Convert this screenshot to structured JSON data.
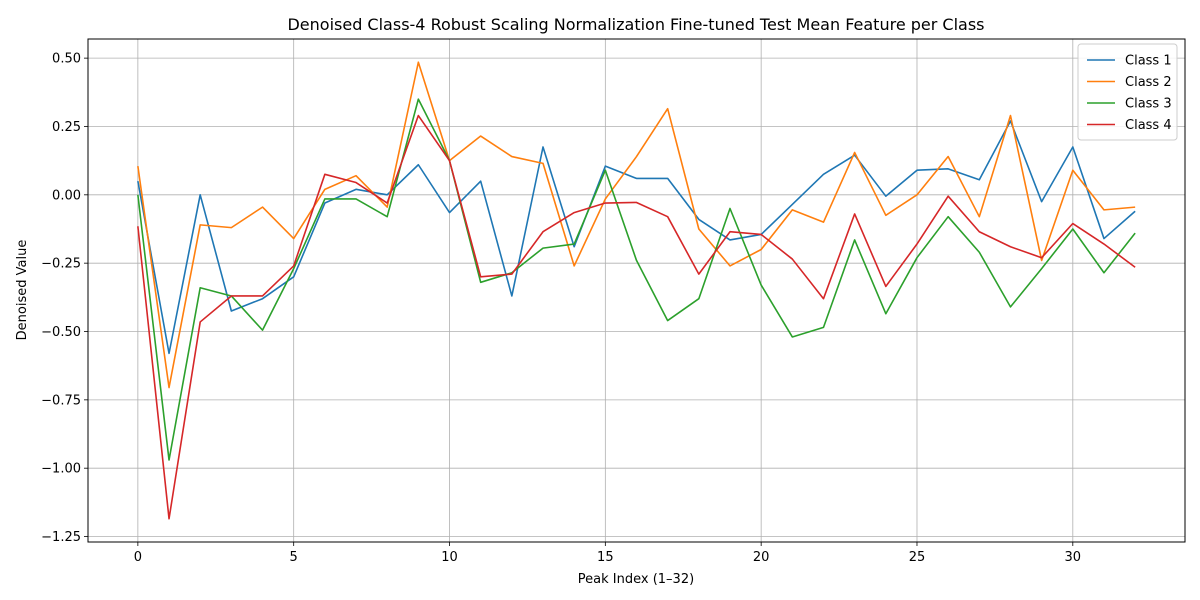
{
  "chart_data": {
    "type": "line",
    "title": "Denoised Class-4 Robust Scaling Normalization Fine-tuned Test Mean Feature per Class",
    "xlabel": "Peak Index (1–32)",
    "ylabel": "Denoised Value",
    "xlim": [
      -1.6,
      33.6
    ],
    "ylim": [
      -1.27,
      0.57
    ],
    "xticks": [
      0,
      5,
      10,
      15,
      20,
      25,
      30
    ],
    "xtick_labels": [
      "0",
      "5",
      "10",
      "15",
      "20",
      "25",
      "30"
    ],
    "yticks": [
      -1.25,
      -1.0,
      -0.75,
      -0.5,
      -0.25,
      0.0,
      0.25,
      0.5
    ],
    "ytick_labels": [
      "−1.25",
      "−1.00",
      "−0.75",
      "−0.50",
      "−0.25",
      "0.00",
      "0.25",
      "0.50"
    ],
    "grid": true,
    "legend_position": "top-right",
    "x": [
      0,
      1,
      2,
      3,
      4,
      5,
      6,
      7,
      8,
      9,
      10,
      11,
      12,
      13,
      14,
      15,
      16,
      17,
      18,
      19,
      20,
      21,
      22,
      23,
      24,
      25,
      26,
      27,
      28,
      29,
      30,
      31,
      32
    ],
    "series": [
      {
        "name": "Class 1",
        "color": "#1f77b4",
        "values": [
          0.05,
          -0.58,
          0.0,
          -0.425,
          -0.38,
          -0.3,
          -0.03,
          0.02,
          0.0,
          0.11,
          -0.065,
          0.05,
          -0.37,
          0.175,
          -0.19,
          0.105,
          0.06,
          0.06,
          -0.09,
          -0.165,
          -0.145,
          -0.035,
          0.075,
          0.145,
          -0.005,
          0.09,
          0.095,
          0.055,
          0.27,
          -0.025,
          0.175,
          -0.16,
          -0.06
        ]
      },
      {
        "name": "Class 2",
        "color": "#ff7f0e",
        "values": [
          0.105,
          -0.705,
          -0.11,
          -0.12,
          -0.045,
          -0.16,
          0.02,
          0.07,
          -0.045,
          0.485,
          0.125,
          0.215,
          0.14,
          0.115,
          -0.26,
          -0.015,
          0.14,
          0.315,
          -0.125,
          -0.26,
          -0.2,
          -0.055,
          -0.1,
          0.155,
          -0.075,
          0.0,
          0.14,
          -0.08,
          0.29,
          -0.24,
          0.09,
          -0.055,
          -0.045
        ]
      },
      {
        "name": "Class 3",
        "color": "#2ca02c",
        "values": [
          0.0,
          -0.97,
          -0.34,
          -0.37,
          -0.495,
          -0.27,
          -0.015,
          -0.015,
          -0.08,
          0.35,
          0.125,
          -0.32,
          -0.285,
          -0.195,
          -0.18,
          0.09,
          -0.24,
          -0.46,
          -0.38,
          -0.05,
          -0.33,
          -0.52,
          -0.485,
          -0.165,
          -0.435,
          -0.23,
          -0.08,
          -0.21,
          -0.41,
          -0.27,
          -0.125,
          -0.285,
          -0.14
        ]
      },
      {
        "name": "Class 4",
        "color": "#d62728",
        "values": [
          -0.115,
          -1.185,
          -0.465,
          -0.37,
          -0.37,
          -0.26,
          0.075,
          0.045,
          -0.03,
          0.29,
          0.125,
          -0.3,
          -0.29,
          -0.135,
          -0.065,
          -0.03,
          -0.028,
          -0.08,
          -0.29,
          -0.135,
          -0.145,
          -0.235,
          -0.38,
          -0.07,
          -0.335,
          -0.18,
          -0.005,
          -0.135,
          -0.19,
          -0.23,
          -0.105,
          -0.18,
          -0.265
        ]
      }
    ]
  }
}
